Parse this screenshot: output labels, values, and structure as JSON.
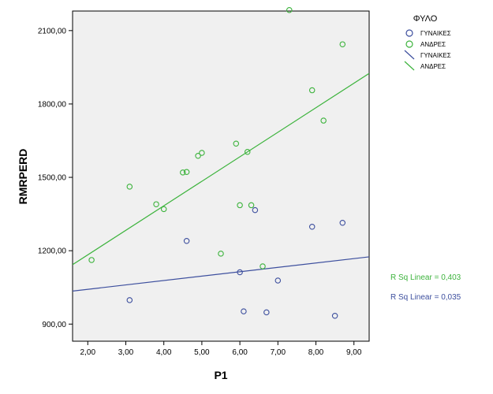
{
  "chart_data": {
    "type": "scatter",
    "xlabel": "P1",
    "ylabel": "RMRPERD",
    "xlim": [
      1.6,
      9.4
    ],
    "ylim": [
      830,
      2180
    ],
    "xticks": [
      "2,00",
      "3,00",
      "4,00",
      "5,00",
      "6,00",
      "7,00",
      "8,00",
      "9,00"
    ],
    "xtick_values": [
      2,
      3,
      4,
      5,
      6,
      7,
      8,
      9
    ],
    "yticks": [
      "900,00",
      "1200,00",
      "1500,00",
      "1800,00",
      "2100,00"
    ],
    "ytick_values": [
      900,
      1200,
      1500,
      1800,
      2100
    ],
    "grid": false,
    "legend": {
      "title": "ΦΥΛΟ",
      "placement": "right",
      "entries": [
        {
          "label": "ΓΥΝΑΙΚΕΣ",
          "marker": "circle",
          "color": "#3d4f9e"
        },
        {
          "label": "ΑΝΔΡΕΣ",
          "marker": "circle",
          "color": "#3cb33c"
        },
        {
          "label": "ΓΥΝΑΙΚΕΣ",
          "marker": "line",
          "color": "#3d4f9e"
        },
        {
          "label": "ΑΝΔΡΕΣ",
          "marker": "line",
          "color": "#3cb33c"
        }
      ]
    },
    "series": [
      {
        "color": "#3d4f9e",
        "points": [
          {
            "x": 3.1,
            "y": 998
          },
          {
            "x": 4.6,
            "y": 1240
          },
          {
            "x": 6.0,
            "y": 1112
          },
          {
            "x": 6.1,
            "y": 952
          },
          {
            "x": 6.4,
            "y": 1366
          },
          {
            "x": 6.7,
            "y": 948
          },
          {
            "x": 7.0,
            "y": 1078
          },
          {
            "x": 7.9,
            "y": 1298
          },
          {
            "x": 8.5,
            "y": 934
          },
          {
            "x": 8.7,
            "y": 1314
          }
        ],
        "fit": {
          "x": [
            1.6,
            9.4
          ],
          "y": [
            1035,
            1175
          ]
        },
        "rsq_label": "R Sq Linear = 0,035"
      },
      {
        "color": "#3cb33c",
        "points": [
          {
            "x": 2.1,
            "y": 1162
          },
          {
            "x": 3.1,
            "y": 1462
          },
          {
            "x": 3.8,
            "y": 1390
          },
          {
            "x": 4.0,
            "y": 1370
          },
          {
            "x": 4.5,
            "y": 1520
          },
          {
            "x": 4.6,
            "y": 1522
          },
          {
            "x": 4.9,
            "y": 1588
          },
          {
            "x": 5.0,
            "y": 1600
          },
          {
            "x": 5.5,
            "y": 1188
          },
          {
            "x": 5.9,
            "y": 1638
          },
          {
            "x": 6.0,
            "y": 1386
          },
          {
            "x": 6.2,
            "y": 1604
          },
          {
            "x": 6.3,
            "y": 1386
          },
          {
            "x": 6.6,
            "y": 1136
          },
          {
            "x": 7.3,
            "y": 2184
          },
          {
            "x": 7.9,
            "y": 1856
          },
          {
            "x": 8.2,
            "y": 1732
          },
          {
            "x": 8.7,
            "y": 2044
          }
        ],
        "fit": {
          "x": [
            1.6,
            9.4
          ],
          "y": [
            1143,
            1925
          ]
        },
        "rsq_label": "R Sq Linear = 0,403"
      }
    ]
  }
}
